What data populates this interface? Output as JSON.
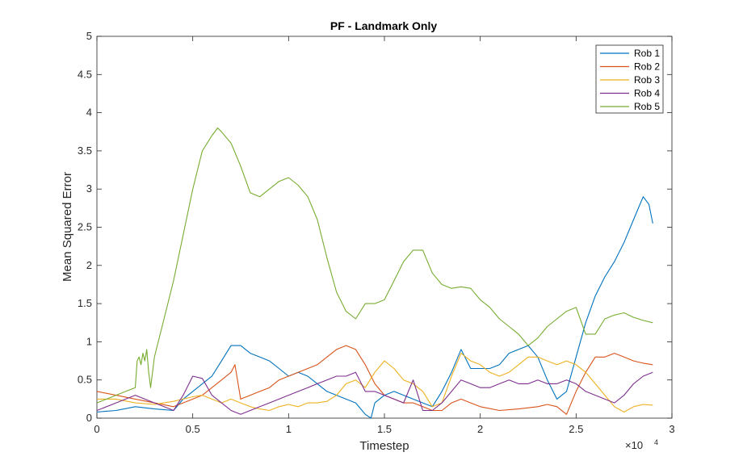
{
  "chart_data": {
    "type": "line",
    "title": "PF - Landmark Only",
    "xlabel": "Timestep",
    "ylabel": "Mean Squared Error",
    "x_exponent_label": "×10",
    "x_exponent_power": "4",
    "xlim": [
      0,
      3
    ],
    "ylim": [
      0,
      5
    ],
    "xticks": [
      0,
      0.5,
      1,
      1.5,
      2,
      2.5,
      3
    ],
    "xtick_labels": [
      "0",
      "0.5",
      "1",
      "1.5",
      "2",
      "2.5",
      "3"
    ],
    "yticks": [
      0,
      0.5,
      1,
      1.5,
      2,
      2.5,
      3,
      3.5,
      4,
      4.5,
      5
    ],
    "ytick_labels": [
      "0",
      "0.5",
      "1",
      "1.5",
      "2",
      "2.5",
      "3",
      "3.5",
      "4",
      "4.5",
      "5"
    ],
    "grid": false,
    "legend_position": "top-right",
    "series": [
      {
        "name": "Rob 1",
        "color": "#0072BD",
        "x": [
          0,
          0.1,
          0.2,
          0.3,
          0.4,
          0.45,
          0.5,
          0.55,
          0.6,
          0.65,
          0.7,
          0.75,
          0.8,
          0.85,
          0.9,
          0.95,
          1.0,
          1.05,
          1.1,
          1.15,
          1.2,
          1.25,
          1.3,
          1.35,
          1.4,
          1.43,
          1.45,
          1.5,
          1.55,
          1.6,
          1.65,
          1.7,
          1.75,
          1.8,
          1.85,
          1.9,
          1.95,
          2.0,
          2.05,
          2.1,
          2.15,
          2.2,
          2.25,
          2.3,
          2.35,
          2.4,
          2.45,
          2.5,
          2.55,
          2.6,
          2.65,
          2.7,
          2.75,
          2.8,
          2.85,
          2.88,
          2.9
        ],
        "y": [
          0.08,
          0.1,
          0.15,
          0.12,
          0.1,
          0.25,
          0.35,
          0.45,
          0.55,
          0.75,
          0.95,
          0.95,
          0.85,
          0.8,
          0.75,
          0.65,
          0.55,
          0.6,
          0.55,
          0.45,
          0.35,
          0.3,
          0.25,
          0.2,
          0.05,
          0.0,
          0.2,
          0.3,
          0.35,
          0.3,
          0.25,
          0.2,
          0.15,
          0.35,
          0.6,
          0.9,
          0.65,
          0.65,
          0.65,
          0.7,
          0.85,
          0.9,
          0.95,
          0.8,
          0.5,
          0.25,
          0.35,
          0.8,
          1.25,
          1.6,
          1.85,
          2.05,
          2.3,
          2.6,
          2.9,
          2.8,
          2.55
        ]
      },
      {
        "name": "Rob 2",
        "color": "#D95319",
        "x": [
          0,
          0.1,
          0.2,
          0.3,
          0.4,
          0.5,
          0.55,
          0.6,
          0.65,
          0.7,
          0.72,
          0.75,
          0.8,
          0.85,
          0.9,
          0.95,
          1.0,
          1.05,
          1.1,
          1.15,
          1.2,
          1.25,
          1.3,
          1.35,
          1.4,
          1.45,
          1.5,
          1.55,
          1.6,
          1.65,
          1.7,
          1.75,
          1.8,
          1.85,
          1.9,
          1.95,
          2.0,
          2.1,
          2.2,
          2.3,
          2.35,
          2.4,
          2.45,
          2.5,
          2.55,
          2.6,
          2.65,
          2.7,
          2.75,
          2.8,
          2.85,
          2.9
        ],
        "y": [
          0.35,
          0.3,
          0.25,
          0.2,
          0.15,
          0.25,
          0.3,
          0.4,
          0.5,
          0.6,
          0.7,
          0.25,
          0.3,
          0.35,
          0.4,
          0.5,
          0.55,
          0.6,
          0.65,
          0.7,
          0.8,
          0.9,
          0.95,
          0.9,
          0.7,
          0.45,
          0.3,
          0.25,
          0.2,
          0.2,
          0.15,
          0.1,
          0.1,
          0.2,
          0.25,
          0.2,
          0.15,
          0.1,
          0.12,
          0.15,
          0.18,
          0.15,
          0.05,
          0.35,
          0.6,
          0.8,
          0.8,
          0.85,
          0.8,
          0.75,
          0.72,
          0.7
        ]
      },
      {
        "name": "Rob 3",
        "color": "#EDB120",
        "x": [
          0,
          0.1,
          0.2,
          0.3,
          0.35,
          0.4,
          0.45,
          0.5,
          0.55,
          0.6,
          0.65,
          0.7,
          0.75,
          0.8,
          0.85,
          0.9,
          0.95,
          1.0,
          1.05,
          1.1,
          1.15,
          1.2,
          1.25,
          1.3,
          1.35,
          1.4,
          1.45,
          1.5,
          1.55,
          1.6,
          1.65,
          1.7,
          1.75,
          1.8,
          1.85,
          1.9,
          1.95,
          2.0,
          2.05,
          2.1,
          2.15,
          2.2,
          2.25,
          2.3,
          2.35,
          2.4,
          2.45,
          2.5,
          2.55,
          2.6,
          2.65,
          2.7,
          2.75,
          2.8,
          2.85,
          2.9
        ],
        "y": [
          0.25,
          0.25,
          0.2,
          0.18,
          0.2,
          0.22,
          0.25,
          0.28,
          0.3,
          0.25,
          0.2,
          0.25,
          0.2,
          0.15,
          0.12,
          0.1,
          0.15,
          0.18,
          0.15,
          0.2,
          0.2,
          0.22,
          0.3,
          0.45,
          0.5,
          0.4,
          0.6,
          0.75,
          0.65,
          0.5,
          0.45,
          0.35,
          0.15,
          0.2,
          0.55,
          0.85,
          0.75,
          0.7,
          0.6,
          0.55,
          0.6,
          0.7,
          0.8,
          0.8,
          0.75,
          0.7,
          0.75,
          0.7,
          0.6,
          0.45,
          0.3,
          0.15,
          0.08,
          0.15,
          0.18,
          0.17
        ]
      },
      {
        "name": "Rob 4",
        "color": "#7E2F8E",
        "x": [
          0,
          0.1,
          0.2,
          0.25,
          0.3,
          0.35,
          0.4,
          0.45,
          0.5,
          0.55,
          0.6,
          0.65,
          0.7,
          0.75,
          0.8,
          0.85,
          0.9,
          0.95,
          1.0,
          1.05,
          1.1,
          1.15,
          1.2,
          1.25,
          1.3,
          1.35,
          1.4,
          1.45,
          1.5,
          1.55,
          1.6,
          1.65,
          1.7,
          1.75,
          1.8,
          1.85,
          1.9,
          1.95,
          2.0,
          2.05,
          2.1,
          2.15,
          2.2,
          2.25,
          2.3,
          2.35,
          2.4,
          2.45,
          2.5,
          2.55,
          2.6,
          2.65,
          2.7,
          2.75,
          2.8,
          2.85,
          2.9
        ],
        "y": [
          0.1,
          0.2,
          0.3,
          0.25,
          0.2,
          0.15,
          0.1,
          0.3,
          0.55,
          0.52,
          0.3,
          0.2,
          0.1,
          0.05,
          0.1,
          0.15,
          0.2,
          0.25,
          0.3,
          0.35,
          0.4,
          0.45,
          0.5,
          0.55,
          0.55,
          0.6,
          0.35,
          0.35,
          0.3,
          0.25,
          0.2,
          0.5,
          0.1,
          0.1,
          0.2,
          0.35,
          0.5,
          0.45,
          0.4,
          0.4,
          0.45,
          0.5,
          0.45,
          0.45,
          0.5,
          0.45,
          0.45,
          0.5,
          0.45,
          0.35,
          0.3,
          0.25,
          0.2,
          0.3,
          0.45,
          0.55,
          0.6
        ]
      },
      {
        "name": "Rob 5",
        "color": "#77AC30",
        "x": [
          0,
          0.05,
          0.1,
          0.15,
          0.2,
          0.21,
          0.22,
          0.23,
          0.24,
          0.25,
          0.26,
          0.27,
          0.28,
          0.3,
          0.35,
          0.4,
          0.45,
          0.5,
          0.55,
          0.6,
          0.63,
          0.65,
          0.7,
          0.75,
          0.8,
          0.85,
          0.9,
          0.95,
          1.0,
          1.05,
          1.1,
          1.15,
          1.2,
          1.25,
          1.3,
          1.35,
          1.4,
          1.45,
          1.5,
          1.55,
          1.6,
          1.65,
          1.7,
          1.75,
          1.8,
          1.85,
          1.9,
          1.95,
          2.0,
          2.05,
          2.1,
          2.15,
          2.2,
          2.25,
          2.3,
          2.35,
          2.4,
          2.45,
          2.5,
          2.55,
          2.6,
          2.65,
          2.7,
          2.75,
          2.8,
          2.85,
          2.9
        ],
        "y": [
          0.2,
          0.25,
          0.3,
          0.35,
          0.4,
          0.75,
          0.8,
          0.7,
          0.85,
          0.75,
          0.9,
          0.6,
          0.4,
          0.8,
          1.3,
          1.8,
          2.4,
          3.0,
          3.5,
          3.7,
          3.8,
          3.75,
          3.6,
          3.3,
          2.95,
          2.9,
          3.0,
          3.1,
          3.15,
          3.05,
          2.9,
          2.6,
          2.1,
          1.65,
          1.4,
          1.3,
          1.5,
          1.5,
          1.55,
          1.8,
          2.05,
          2.2,
          2.2,
          1.9,
          1.75,
          1.7,
          1.72,
          1.7,
          1.55,
          1.45,
          1.3,
          1.2,
          1.1,
          0.95,
          1.05,
          1.2,
          1.3,
          1.4,
          1.45,
          1.1,
          1.1,
          1.3,
          1.35,
          1.38,
          1.32,
          1.28,
          1.25
        ]
      }
    ]
  }
}
